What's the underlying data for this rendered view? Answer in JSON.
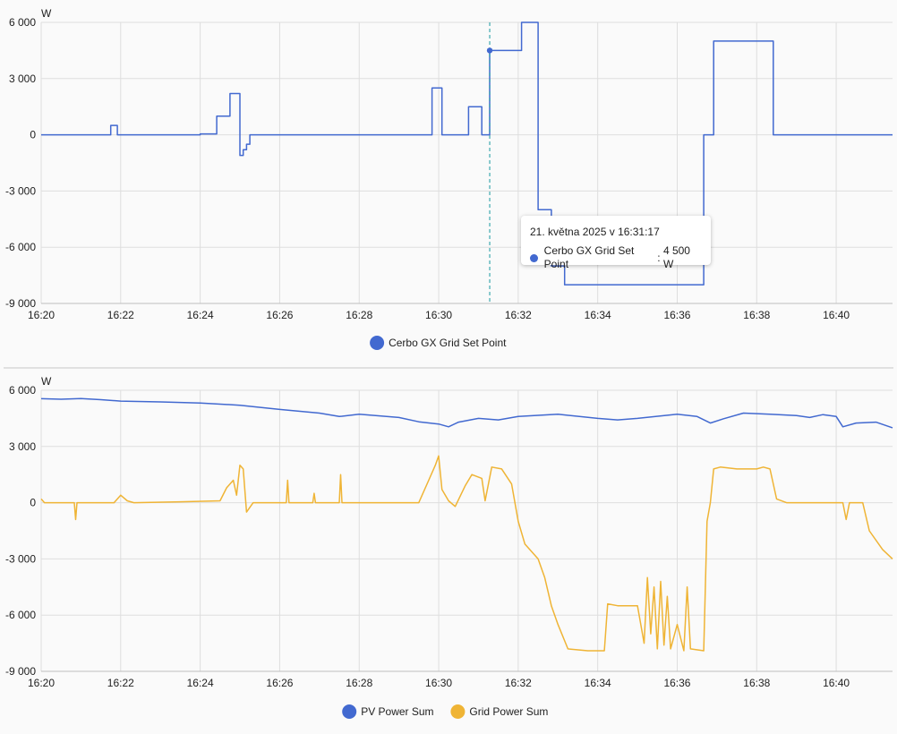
{
  "colors": {
    "set_point": "#4269d0",
    "pv": "#4269d0",
    "grid": "#efb435",
    "gridline": "#dedede",
    "axis": "#bdbdbd"
  },
  "tooltip": {
    "title": "21. května 2025 v 16:31:17",
    "series": "Cerbo GX Grid Set Point",
    "value": "4 500 W",
    "x": "16:31:17"
  },
  "chart_data": [
    {
      "type": "line",
      "step": true,
      "ylabel": "W",
      "ylim": [
        -9000,
        6000
      ],
      "y_ticks": [
        6000,
        3000,
        0,
        -3000,
        -6000,
        -9000
      ],
      "y_tick_labels": [
        "6 000",
        "3 000",
        "0",
        "-3 000",
        "-6 000",
        "-9 000"
      ],
      "x_range": [
        "16:20",
        "16:41:25"
      ],
      "x_ticks": [
        "16:20",
        "16:22",
        "16:24",
        "16:26",
        "16:28",
        "16:30",
        "16:32",
        "16:34",
        "16:36",
        "16:38",
        "16:40"
      ],
      "legend_position": "bottom",
      "grid": true,
      "series": [
        {
          "name": "Cerbo GX Grid Set Point",
          "points": [
            [
              "16:20:00",
              0
            ],
            [
              "16:21:45",
              500
            ],
            [
              "16:21:55",
              0
            ],
            [
              "16:24:00",
              50
            ],
            [
              "16:24:25",
              1000
            ],
            [
              "16:24:45",
              2200
            ],
            [
              "16:25:00",
              -1100
            ],
            [
              "16:25:05",
              -800
            ],
            [
              "16:25:10",
              -500
            ],
            [
              "16:25:15",
              0
            ],
            [
              "16:29:50",
              2500
            ],
            [
              "16:30:05",
              0
            ],
            [
              "16:30:45",
              1500
            ],
            [
              "16:31:05",
              0
            ],
            [
              "16:31:17",
              4500
            ],
            [
              "16:32:05",
              6000
            ],
            [
              "16:32:30",
              -4000
            ],
            [
              "16:32:50",
              -7000
            ],
            [
              "16:33:10",
              -8000
            ],
            [
              "16:36:40",
              0
            ],
            [
              "16:36:55",
              5000
            ],
            [
              "16:38:25",
              0
            ],
            [
              "16:41:25",
              0
            ]
          ]
        }
      ]
    },
    {
      "type": "line",
      "ylabel": "W",
      "ylim": [
        -9000,
        6000
      ],
      "y_ticks": [
        6000,
        3000,
        0,
        -3000,
        -6000,
        -9000
      ],
      "y_tick_labels": [
        "6 000",
        "3 000",
        "0",
        "-3 000",
        "-6 000",
        "-9 000"
      ],
      "x_range": [
        "16:20",
        "16:41:25"
      ],
      "x_ticks": [
        "16:20",
        "16:22",
        "16:24",
        "16:26",
        "16:28",
        "16:30",
        "16:32",
        "16:34",
        "16:36",
        "16:38",
        "16:40"
      ],
      "legend_position": "bottom",
      "grid": true,
      "series": [
        {
          "name": "PV Power Sum",
          "points": [
            [
              "16:20:00",
              5550
            ],
            [
              "16:20:30",
              5520
            ],
            [
              "16:21:00",
              5560
            ],
            [
              "16:21:30",
              5500
            ],
            [
              "16:22:00",
              5420
            ],
            [
              "16:23:00",
              5380
            ],
            [
              "16:24:00",
              5320
            ],
            [
              "16:25:00",
              5200
            ],
            [
              "16:26:00",
              4980
            ],
            [
              "16:27:00",
              4780
            ],
            [
              "16:27:30",
              4600
            ],
            [
              "16:28:00",
              4720
            ],
            [
              "16:29:00",
              4550
            ],
            [
              "16:29:30",
              4320
            ],
            [
              "16:30:00",
              4200
            ],
            [
              "16:30:15",
              4050
            ],
            [
              "16:30:30",
              4300
            ],
            [
              "16:31:00",
              4500
            ],
            [
              "16:31:30",
              4420
            ],
            [
              "16:32:00",
              4600
            ],
            [
              "16:33:00",
              4720
            ],
            [
              "16:34:00",
              4500
            ],
            [
              "16:34:30",
              4420
            ],
            [
              "16:35:00",
              4500
            ],
            [
              "16:36:00",
              4720
            ],
            [
              "16:36:30",
              4600
            ],
            [
              "16:36:50",
              4250
            ],
            [
              "16:37:10",
              4480
            ],
            [
              "16:37:40",
              4780
            ],
            [
              "16:38:20",
              4720
            ],
            [
              "16:39:00",
              4650
            ],
            [
              "16:39:20",
              4550
            ],
            [
              "16:39:40",
              4700
            ],
            [
              "16:40:00",
              4600
            ],
            [
              "16:40:10",
              4050
            ],
            [
              "16:40:30",
              4250
            ],
            [
              "16:41:00",
              4300
            ],
            [
              "16:41:25",
              4000
            ]
          ]
        },
        {
          "name": "Grid Power Sum",
          "points": [
            [
              "16:20:00",
              200
            ],
            [
              "16:20:05",
              0
            ],
            [
              "16:20:50",
              0
            ],
            [
              "16:20:52",
              -900
            ],
            [
              "16:20:54",
              0
            ],
            [
              "16:21:50",
              0
            ],
            [
              "16:22:00",
              400
            ],
            [
              "16:22:10",
              100
            ],
            [
              "16:22:20",
              0
            ],
            [
              "16:23:30",
              50
            ],
            [
              "16:24:30",
              100
            ],
            [
              "16:24:40",
              800
            ],
            [
              "16:24:50",
              1200
            ],
            [
              "16:24:55",
              400
            ],
            [
              "16:25:00",
              2000
            ],
            [
              "16:25:05",
              1800
            ],
            [
              "16:25:10",
              -500
            ],
            [
              "16:25:20",
              0
            ],
            [
              "16:26:10",
              0
            ],
            [
              "16:26:12",
              1200
            ],
            [
              "16:26:14",
              0
            ],
            [
              "16:26:50",
              0
            ],
            [
              "16:26:52",
              500
            ],
            [
              "16:26:54",
              0
            ],
            [
              "16:27:30",
              0
            ],
            [
              "16:27:32",
              1500
            ],
            [
              "16:27:34",
              0
            ],
            [
              "16:29:30",
              0
            ],
            [
              "16:29:45",
              1200
            ],
            [
              "16:29:55",
              2000
            ],
            [
              "16:30:00",
              2500
            ],
            [
              "16:30:05",
              700
            ],
            [
              "16:30:15",
              100
            ],
            [
              "16:30:25",
              -200
            ],
            [
              "16:30:40",
              900
            ],
            [
              "16:30:50",
              1500
            ],
            [
              "16:31:05",
              1300
            ],
            [
              "16:31:10",
              100
            ],
            [
              "16:31:20",
              1900
            ],
            [
              "16:31:35",
              1800
            ],
            [
              "16:31:50",
              1000
            ],
            [
              "16:32:00",
              -1000
            ],
            [
              "16:32:10",
              -2200
            ],
            [
              "16:32:30",
              -3000
            ],
            [
              "16:32:40",
              -4000
            ],
            [
              "16:32:50",
              -5500
            ],
            [
              "16:33:00",
              -6500
            ],
            [
              "16:33:15",
              -7800
            ],
            [
              "16:33:45",
              -7900
            ],
            [
              "16:34:10",
              -7900
            ],
            [
              "16:34:15",
              -5400
            ],
            [
              "16:34:30",
              -5500
            ],
            [
              "16:35:00",
              -5500
            ],
            [
              "16:35:10",
              -7500
            ],
            [
              "16:35:15",
              -4000
            ],
            [
              "16:35:20",
              -7000
            ],
            [
              "16:35:25",
              -4500
            ],
            [
              "16:35:30",
              -7800
            ],
            [
              "16:35:35",
              -4200
            ],
            [
              "16:35:40",
              -7600
            ],
            [
              "16:35:45",
              -5000
            ],
            [
              "16:35:50",
              -7800
            ],
            [
              "16:36:00",
              -6500
            ],
            [
              "16:36:10",
              -7900
            ],
            [
              "16:36:15",
              -4500
            ],
            [
              "16:36:20",
              -7800
            ],
            [
              "16:36:40",
              -7900
            ],
            [
              "16:36:45",
              -1000
            ],
            [
              "16:36:50",
              0
            ],
            [
              "16:36:55",
              1800
            ],
            [
              "16:37:05",
              1900
            ],
            [
              "16:37:30",
              1800
            ],
            [
              "16:38:00",
              1800
            ],
            [
              "16:38:10",
              1900
            ],
            [
              "16:38:20",
              1800
            ],
            [
              "16:38:30",
              200
            ],
            [
              "16:38:45",
              0
            ],
            [
              "16:40:00",
              0
            ],
            [
              "16:40:10",
              0
            ],
            [
              "16:40:15",
              -900
            ],
            [
              "16:40:20",
              0
            ],
            [
              "16:40:40",
              0
            ],
            [
              "16:40:50",
              -1500
            ],
            [
              "16:41:10",
              -2500
            ],
            [
              "16:41:25",
              -3000
            ]
          ]
        }
      ]
    }
  ]
}
